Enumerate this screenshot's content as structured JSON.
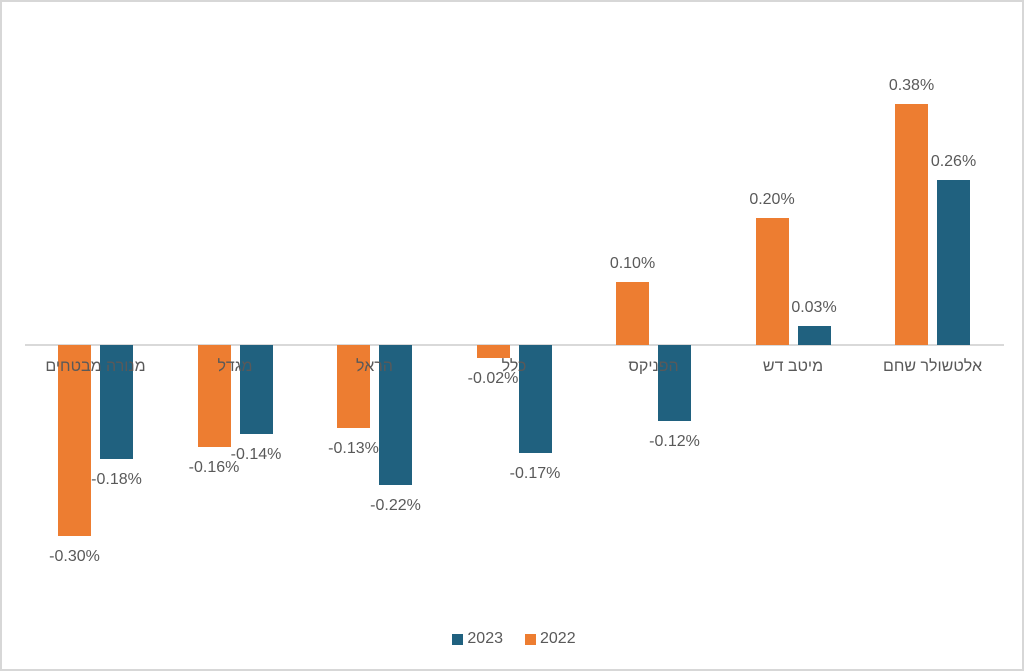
{
  "chart_data": {
    "type": "bar",
    "title": "",
    "orientation": "vertical-grouped",
    "direction": "rtl-first-category-at-right",
    "categories": [
      "מנורה מבטחים",
      "מגדל",
      "הראל",
      "כלל",
      "הפניקס",
      "מיטב דש",
      "אלטשולר שחם"
    ],
    "series": [
      {
        "name": "2022",
        "color": "#ED7D31",
        "values": [
          -0.3,
          -0.16,
          -0.13,
          -0.02,
          0.1,
          0.2,
          0.38
        ],
        "labels": [
          "-0.30%",
          "-0.16%",
          "-0.13%",
          "-0.02%",
          "0.10%",
          "0.20%",
          "0.38%"
        ]
      },
      {
        "name": "2023",
        "color": "#20617F",
        "values": [
          -0.18,
          -0.14,
          -0.22,
          -0.17,
          -0.12,
          0.03,
          0.26
        ],
        "labels": [
          "-0.18%",
          "-0.14%",
          "-0.22%",
          "-0.17%",
          "-0.12%",
          "0.03%",
          "0.26%"
        ]
      }
    ],
    "legend": [
      {
        "label": "2023",
        "color": "#20617F"
      },
      {
        "label": "2022",
        "color": "#ED7D31"
      }
    ],
    "legend_position": "bottom-center",
    "value_format": "percent",
    "ylim": [
      -0.38,
      0.46
    ],
    "grid": false,
    "axis": {
      "baseline_value": 0,
      "line_color": "#D9D9D9",
      "tick_labels_visible": false
    },
    "label_color": "#595959"
  }
}
